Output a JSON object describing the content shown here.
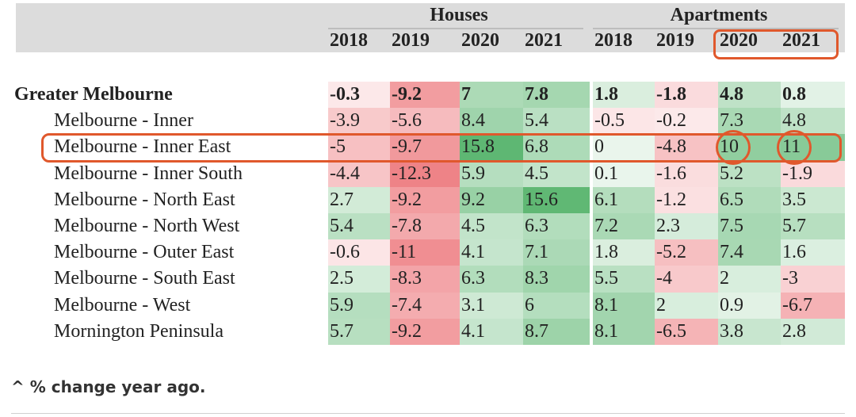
{
  "chart_data": {
    "type": "table",
    "groups": [
      {
        "name": "Houses",
        "years": [
          "2018",
          "2019",
          "2020",
          "2021"
        ]
      },
      {
        "name": "Apartments",
        "years": [
          "2018",
          "2019",
          "2020",
          "2021"
        ]
      }
    ],
    "rows": [
      {
        "label": "Greater Melbourne",
        "bold": true,
        "values": [
          "-0.3",
          "-9.2",
          "7",
          "7.8",
          "1.8",
          "-1.8",
          "4.8",
          "0.8"
        ]
      },
      {
        "label": "Melbourne - Inner",
        "bold": false,
        "values": [
          "-3.9",
          "-5.6",
          "8.4",
          "5.4",
          "-0.5",
          "-0.2",
          "7.3",
          "4.8"
        ]
      },
      {
        "label": "Melbourne - Inner East",
        "bold": false,
        "values": [
          "-5",
          "-9.7",
          "15.8",
          "6.8",
          "0",
          "-4.8",
          "10",
          "11"
        ]
      },
      {
        "label": "Melbourne - Inner South",
        "bold": false,
        "values": [
          "-4.4",
          "-12.3",
          "5.9",
          "4.5",
          "0.1",
          "-1.6",
          "5.2",
          "-1.9"
        ]
      },
      {
        "label": "Melbourne - North East",
        "bold": false,
        "values": [
          "2.7",
          "-9.2",
          "9.2",
          "15.6",
          "6.1",
          "-1.2",
          "6.5",
          "3.5"
        ]
      },
      {
        "label": "Melbourne - North West",
        "bold": false,
        "values": [
          "5.4",
          "-7.8",
          "4.5",
          "6.3",
          "7.2",
          "2.3",
          "7.5",
          "5.7"
        ]
      },
      {
        "label": "Melbourne - Outer East",
        "bold": false,
        "values": [
          "-0.6",
          "-11",
          "4.1",
          "7.1",
          "1.8",
          "-5.2",
          "7.4",
          "1.6"
        ]
      },
      {
        "label": "Melbourne - South East",
        "bold": false,
        "values": [
          "2.5",
          "-8.3",
          "6.3",
          "8.3",
          "5.5",
          "-4",
          "2",
          "-3"
        ]
      },
      {
        "label": "Melbourne - West",
        "bold": false,
        "values": [
          "5.9",
          "-7.4",
          "3.1",
          "6",
          "8.1",
          "2",
          "0.9",
          "-6.7"
        ]
      },
      {
        "label": "Mornington Peninsula",
        "bold": false,
        "values": [
          "5.7",
          "-9.2",
          "4.1",
          "8.7",
          "8.1",
          "-6.5",
          "3.8",
          "2.8"
        ]
      }
    ],
    "colors": {
      "negative": "#e8545a",
      "positive": "#4caf63",
      "highlight": "#e0582c"
    }
  },
  "footnote": "^ % change year ago."
}
